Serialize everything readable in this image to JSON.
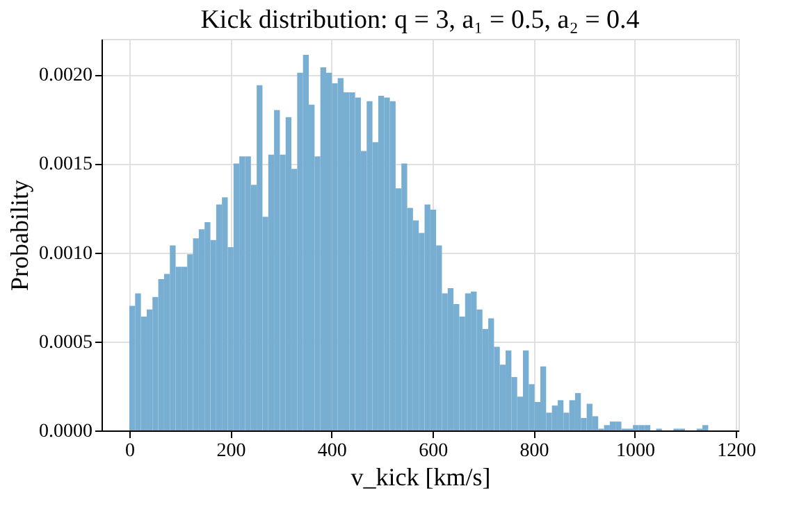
{
  "chart_data": {
    "type": "histogram",
    "title": "Kick distribution: q = 3, a₁ = 0.5, a₂ = 0.4",
    "xlabel": "v_kick [km/s]",
    "ylabel": "Probability",
    "bins": [
      0,
      11.45,
      22.9,
      34.35,
      45.8,
      57.25,
      68.7,
      80.15,
      91.6,
      103.05,
      114.5,
      125.95,
      137.4,
      148.85,
      160.3,
      171.75,
      183.2,
      194.65,
      206.1,
      217.55,
      229,
      240.45,
      251.9,
      263.35,
      274.8,
      286.25,
      297.7,
      309.15,
      320.6,
      332.05,
      343.5,
      354.95,
      366.4,
      377.85,
      389.3,
      400.75,
      412.2,
      423.65,
      435.1,
      446.55,
      458,
      469.45,
      480.9,
      492.35,
      503.8,
      515.25,
      526.7,
      538.15,
      549.6,
      561.05,
      572.5,
      583.95,
      595.4,
      606.85,
      618.3,
      629.75,
      641.2,
      652.65,
      664.1,
      675.55,
      687,
      698.45,
      709.9,
      721.35,
      732.8,
      744.25,
      755.7,
      767.15,
      778.6,
      790.05,
      801.5,
      812.95,
      824.4,
      835.85,
      847.3,
      858.75,
      870.2,
      881.65,
      893.1,
      904.55,
      916,
      927.45,
      938.9,
      950.35,
      961.8,
      973.25,
      984.7,
      996.15,
      1007.6,
      1019.05,
      1030.5,
      1041.95,
      1053.4,
      1064.85,
      1076.3,
      1087.75,
      1099.2,
      1110.65,
      1122.1,
      1133.55,
      1145
    ],
    "values": [
      0.0007,
      0.00077,
      0.00064,
      0.00068,
      0.00075,
      0.00085,
      0.00088,
      0.00104,
      0.00092,
      0.00092,
      0.00099,
      0.00108,
      0.00113,
      0.00117,
      0.00107,
      0.00127,
      0.00131,
      0.00103,
      0.0015,
      0.00154,
      0.00154,
      0.00138,
      0.00194,
      0.0012,
      0.00155,
      0.0018,
      0.00155,
      0.00176,
      0.00147,
      0.00201,
      0.00211,
      0.00183,
      0.00154,
      0.00204,
      0.00201,
      0.00195,
      0.00198,
      0.0019,
      0.0019,
      0.00187,
      0.00157,
      0.00185,
      0.00162,
      0.00188,
      0.00187,
      0.00185,
      0.00136,
      0.0015,
      0.00125,
      0.00118,
      0.00111,
      0.00127,
      0.00124,
      0.00104,
      0.00077,
      0.0008,
      0.00071,
      0.00064,
      0.00077,
      0.00078,
      0.00068,
      0.00057,
      0.00063,
      0.00047,
      0.00037,
      0.00045,
      0.0003,
      0.00019,
      0.00045,
      0.00026,
      0.00016,
      0.00036,
      0.0001,
      0.00014,
      0.00017,
      0.0001,
      0.00017,
      0.00021,
      7e-05,
      0.00015,
      8e-05,
      1e-05,
      3e-05,
      5e-05,
      5e-05,
      1e-05,
      1e-05,
      3e-05,
      3e-05,
      3e-05,
      0,
      1e-05,
      0,
      0,
      1e-05,
      1e-05,
      0,
      0,
      1e-05,
      3e-05
    ],
    "color": "#77aed2",
    "xlim": [
      -55,
      1205
    ],
    "ylim": [
      0,
      0.0022
    ],
    "xticks": [
      0,
      200,
      400,
      600,
      800,
      1000,
      1200
    ],
    "yticks": [
      {
        "value": 0,
        "label": "0.0000"
      },
      {
        "value": 0.0005,
        "label": "0.0005"
      },
      {
        "value": 0.001,
        "label": "0.0010"
      },
      {
        "value": 0.0015,
        "label": "0.0015"
      },
      {
        "value": 0.002,
        "label": "0.0020"
      }
    ],
    "grid": true
  }
}
